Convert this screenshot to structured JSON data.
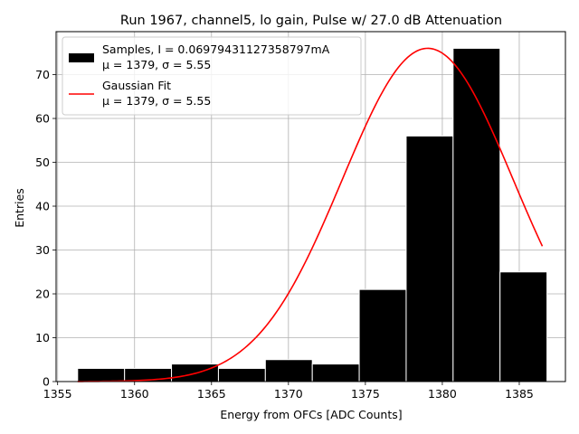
{
  "chart_data": {
    "type": "bar",
    "title": "Run 1967, channel5, lo gain, Pulse w/ 27.0 dB Attenuation",
    "xlabel": "Energy from OFCs [ADC Counts]",
    "ylabel": "Entries",
    "xlim": [
      1354.9,
      1388.0
    ],
    "ylim": [
      0,
      79.8
    ],
    "grid": true,
    "legend_position": "top-left",
    "x_ticks": [
      1355,
      1360,
      1365,
      1370,
      1375,
      1380,
      1385
    ],
    "y_ticks": [
      0,
      10,
      20,
      30,
      40,
      50,
      60,
      70
    ],
    "histogram": {
      "name": "Samples, I = 0.06979431127358797mA",
      "stats": "μ = 1379, σ = 5.55",
      "color": "#000000",
      "bins": [
        {
          "x0": 1356.3,
          "x1": 1359.35,
          "count": 3
        },
        {
          "x0": 1359.35,
          "x1": 1362.4,
          "count": 3
        },
        {
          "x0": 1362.4,
          "x1": 1365.45,
          "count": 4
        },
        {
          "x0": 1365.45,
          "x1": 1368.5,
          "count": 3
        },
        {
          "x0": 1368.5,
          "x1": 1371.55,
          "count": 5
        },
        {
          "x0": 1371.55,
          "x1": 1374.6,
          "count": 4
        },
        {
          "x0": 1374.6,
          "x1": 1377.65,
          "count": 21
        },
        {
          "x0": 1377.65,
          "x1": 1380.7,
          "count": 56
        },
        {
          "x0": 1380.7,
          "x1": 1383.75,
          "count": 76
        },
        {
          "x0": 1383.75,
          "x1": 1386.8,
          "count": 25
        }
      ]
    },
    "fit": {
      "name": "Gaussian Fit",
      "stats": "μ = 1379, σ = 5.55",
      "color": "#ff0000",
      "amplitude": 76,
      "mu": 1379.05,
      "sigma": 5.55,
      "x_range": [
        1356.3,
        1386.5
      ]
    }
  }
}
